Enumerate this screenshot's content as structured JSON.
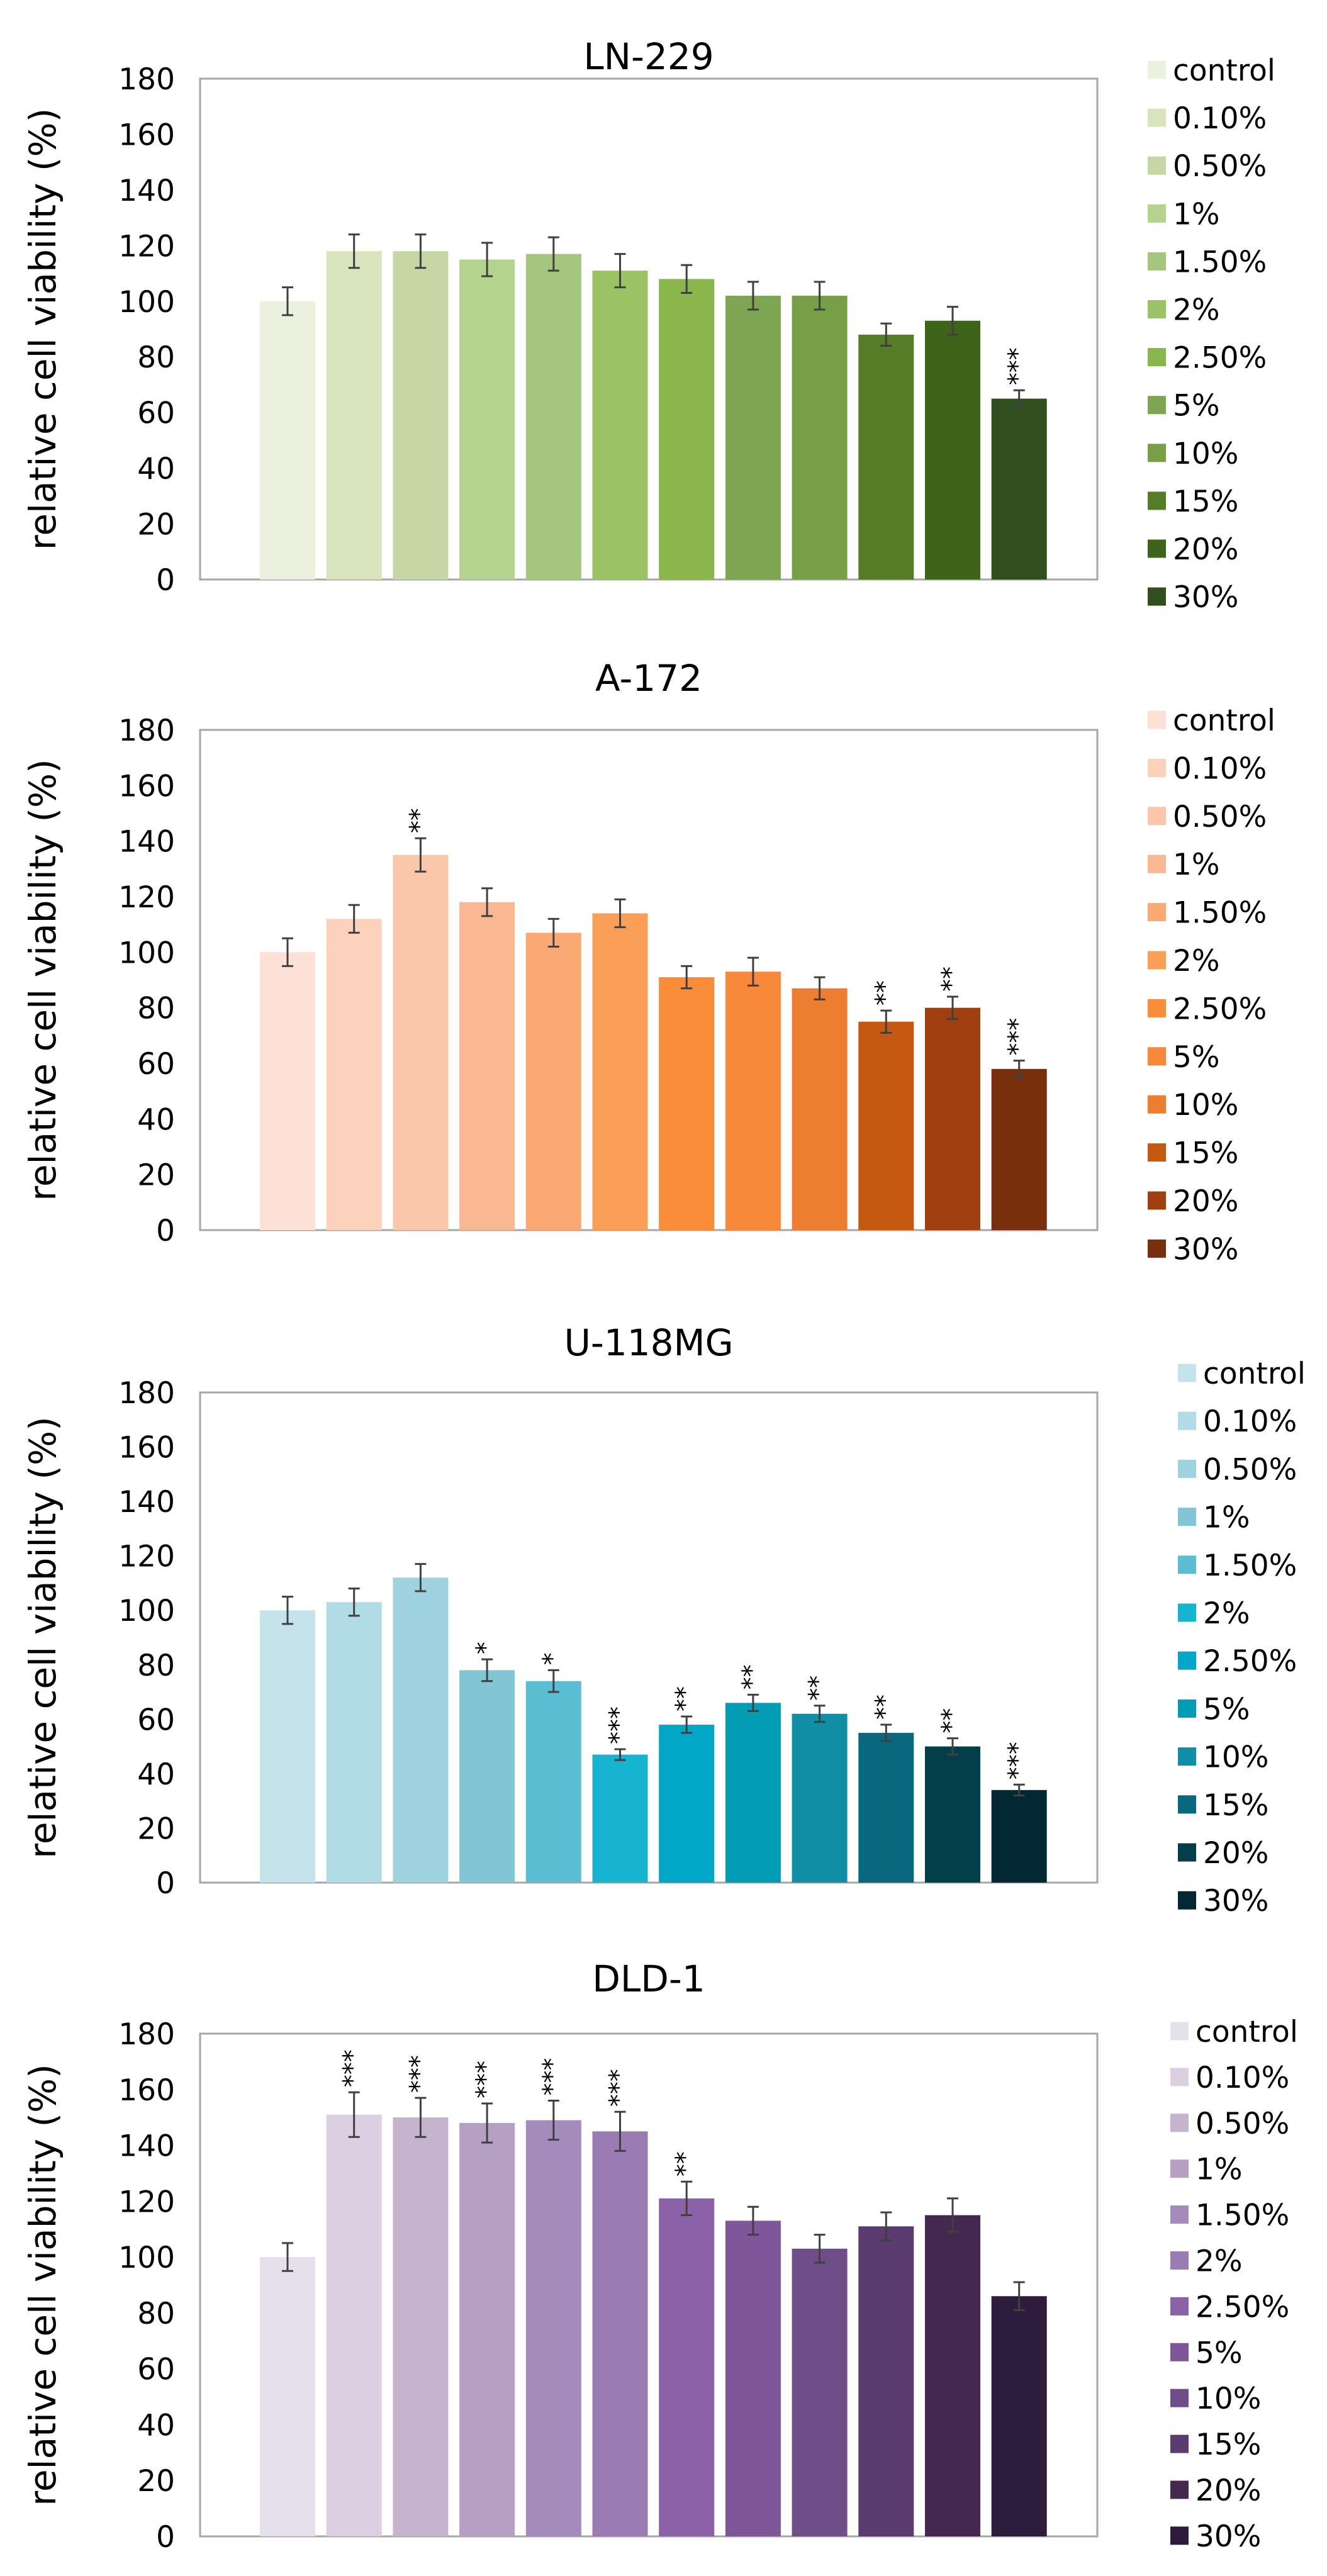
{
  "chart_data": [
    {
      "type": "bar",
      "title": "LN-229",
      "xlabel": "",
      "ylabel": "relative cell viability (%)",
      "ylim": [
        0,
        180
      ],
      "yticks": [
        "0",
        "20",
        "40",
        "60",
        "80",
        "100",
        "120",
        "140",
        "160",
        "180"
      ],
      "categories": [
        "control",
        "0.10%",
        "0.50%",
        "1%",
        "1.50%",
        "2%",
        "2.50%",
        "5%",
        "10%",
        "15%",
        "20%",
        "30%"
      ],
      "values": [
        100,
        118,
        118,
        115,
        117,
        111,
        108,
        102,
        102,
        88,
        93,
        65
      ],
      "errors": [
        5,
        6,
        6,
        6,
        6,
        6,
        5,
        5,
        5,
        4,
        5,
        3
      ],
      "significance": [
        "",
        "",
        "",
        "",
        "",
        "",
        "",
        "",
        "",
        "",
        "",
        "***"
      ],
      "colors": [
        "#ebf1de",
        "#d8e4bc",
        "#c4d7a4",
        "#b3d38e",
        "#a4c67f",
        "#9bc265",
        "#89b74c",
        "#7ea551",
        "#769f47",
        "#557c27",
        "#3e6419",
        "#304e1e"
      ],
      "legend_position": "right"
    },
    {
      "type": "bar",
      "title": "A-172",
      "xlabel": "",
      "ylabel": "relative cell viability (%)",
      "ylim": [
        0,
        180
      ],
      "yticks": [
        "0",
        "20",
        "40",
        "60",
        "80",
        "100",
        "120",
        "140",
        "160",
        "180"
      ],
      "categories": [
        "control",
        "0.10%",
        "0.50%",
        "1%",
        "1.50%",
        "2%",
        "2.50%",
        "5%",
        "10%",
        "15%",
        "20%",
        "30%"
      ],
      "values": [
        100,
        112,
        135,
        118,
        107,
        114,
        91,
        93,
        87,
        75,
        80,
        58
      ],
      "errors": [
        5,
        5,
        6,
        5,
        5,
        5,
        4,
        5,
        4,
        4,
        4,
        3
      ],
      "significance": [
        "",
        "",
        "**",
        "",
        "",
        "",
        "",
        "",
        "",
        "**",
        "**",
        "***"
      ],
      "colors": [
        "#fde0d6",
        "#fdd2bd",
        "#fbc7ab",
        "#fab794",
        "#fba973",
        "#fb9e58",
        "#f98d3a",
        "#f8893b",
        "#ed7d31",
        "#c65911",
        "#a04010",
        "#78300c"
      ],
      "legend_position": "right"
    },
    {
      "type": "bar",
      "title": "U-118MG",
      "xlabel": "",
      "ylabel": "relative cell viability (%)",
      "ylim": [
        0,
        180
      ],
      "yticks": [
        "0",
        "20",
        "40",
        "60",
        "80",
        "100",
        "120",
        "140",
        "160",
        "180"
      ],
      "categories": [
        "control",
        "0.10%",
        "0.50%",
        "1%",
        "1.50%",
        "2%",
        "2.50%",
        "5%",
        "10%",
        "15%",
        "20%",
        "30%"
      ],
      "values": [
        100,
        103,
        112,
        78,
        74,
        47,
        58,
        66,
        62,
        55,
        50,
        34
      ],
      "errors": [
        5,
        5,
        5,
        4,
        4,
        2,
        3,
        3,
        3,
        3,
        3,
        2
      ],
      "significance": [
        "",
        "",
        "",
        "*",
        "*",
        "***",
        "**",
        "**",
        "**",
        "**",
        "**",
        "***"
      ],
      "colors": [
        "#c5e3ea",
        "#b2dce5",
        "#9fd2df",
        "#82c6d6",
        "#5bbdd2",
        "#16b4d0",
        "#02a6c6",
        "#029cb5",
        "#0f8ea5",
        "#08687e",
        "#033f4b",
        "#032834"
      ],
      "legend_position": "right"
    },
    {
      "type": "bar",
      "title": "DLD-1",
      "xlabel": "",
      "ylabel": "relative cell viability (%)",
      "ylim": [
        0,
        180
      ],
      "yticks": [
        "0",
        "20",
        "40",
        "60",
        "80",
        "100",
        "120",
        "140",
        "160",
        "180"
      ],
      "categories": [
        "control",
        "0.10%",
        "0.50%",
        "1%",
        "1.50%",
        "2%",
        "2.50%",
        "5%",
        "10%",
        "15%",
        "20%",
        "30%"
      ],
      "values": [
        100,
        151,
        150,
        148,
        149,
        145,
        121,
        113,
        103,
        111,
        115,
        86
      ],
      "errors": [
        5,
        8,
        7,
        7,
        7,
        7,
        6,
        5,
        5,
        5,
        6,
        5
      ],
      "significance": [
        "",
        "***",
        "***",
        "***",
        "***",
        "***",
        "**",
        "",
        "",
        "",
        "",
        ""
      ],
      "colors": [
        "#e6e0ec",
        "#dccfe2",
        "#c6b4cf",
        "#b5a0c4",
        "#a58bbb",
        "#9a7cb2",
        "#8b62a8",
        "#7e5699",
        "#6f4d88",
        "#5b3c71",
        "#45284f",
        "#2e1c3c"
      ],
      "legend_position": "right"
    }
  ]
}
